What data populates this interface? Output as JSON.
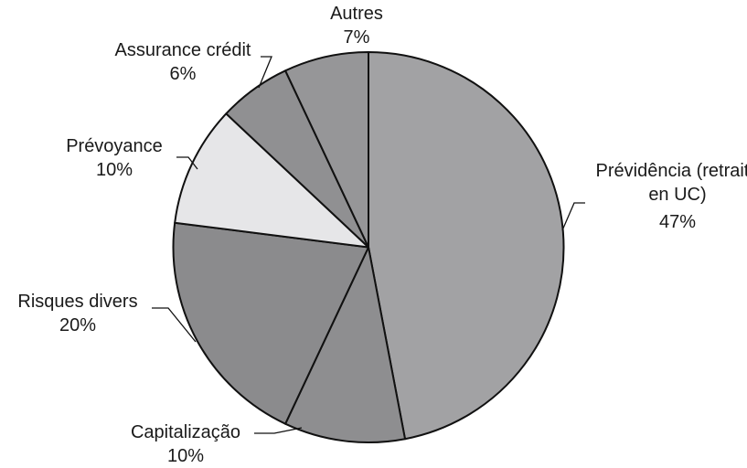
{
  "chart_data": {
    "type": "pie",
    "categories": [
      "Prévidência (retraite en UC)",
      "Capitalização",
      "Risques divers",
      "Prévoyance",
      "Assurance crédit",
      "Autres"
    ],
    "values": [
      47,
      10,
      20,
      10,
      6,
      7
    ],
    "value_labels": [
      "47%",
      "10%",
      "20%",
      "10%",
      "6%",
      "7%"
    ],
    "colors": [
      "#a2a2a4",
      "#8e8e90",
      "#8b8b8d",
      "#e6e6e8",
      "#909092",
      "#969698"
    ]
  }
}
